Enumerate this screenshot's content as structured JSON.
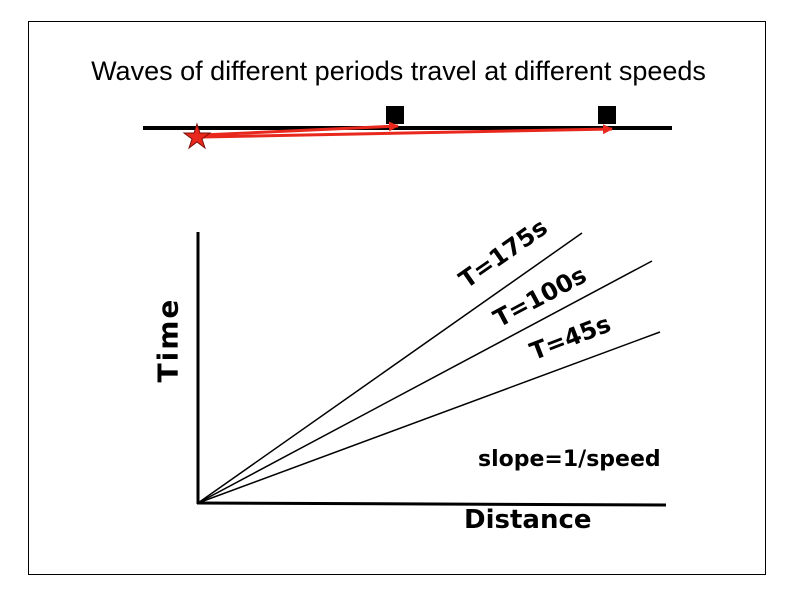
{
  "title": "Waves of different periods travel at different speeds",
  "axes": {
    "y_label": "Time",
    "x_label": "Distance"
  },
  "lines": [
    {
      "label": "T=175s"
    },
    {
      "label": "T=100s"
    },
    {
      "label": "T=45s"
    }
  ],
  "annotation": "slope=1/speed",
  "colors": {
    "arrow": "#e8281c",
    "star": "#e8281c",
    "lines": "#000000"
  },
  "icons": {
    "source": "star-icon",
    "stations": "square-icon"
  }
}
